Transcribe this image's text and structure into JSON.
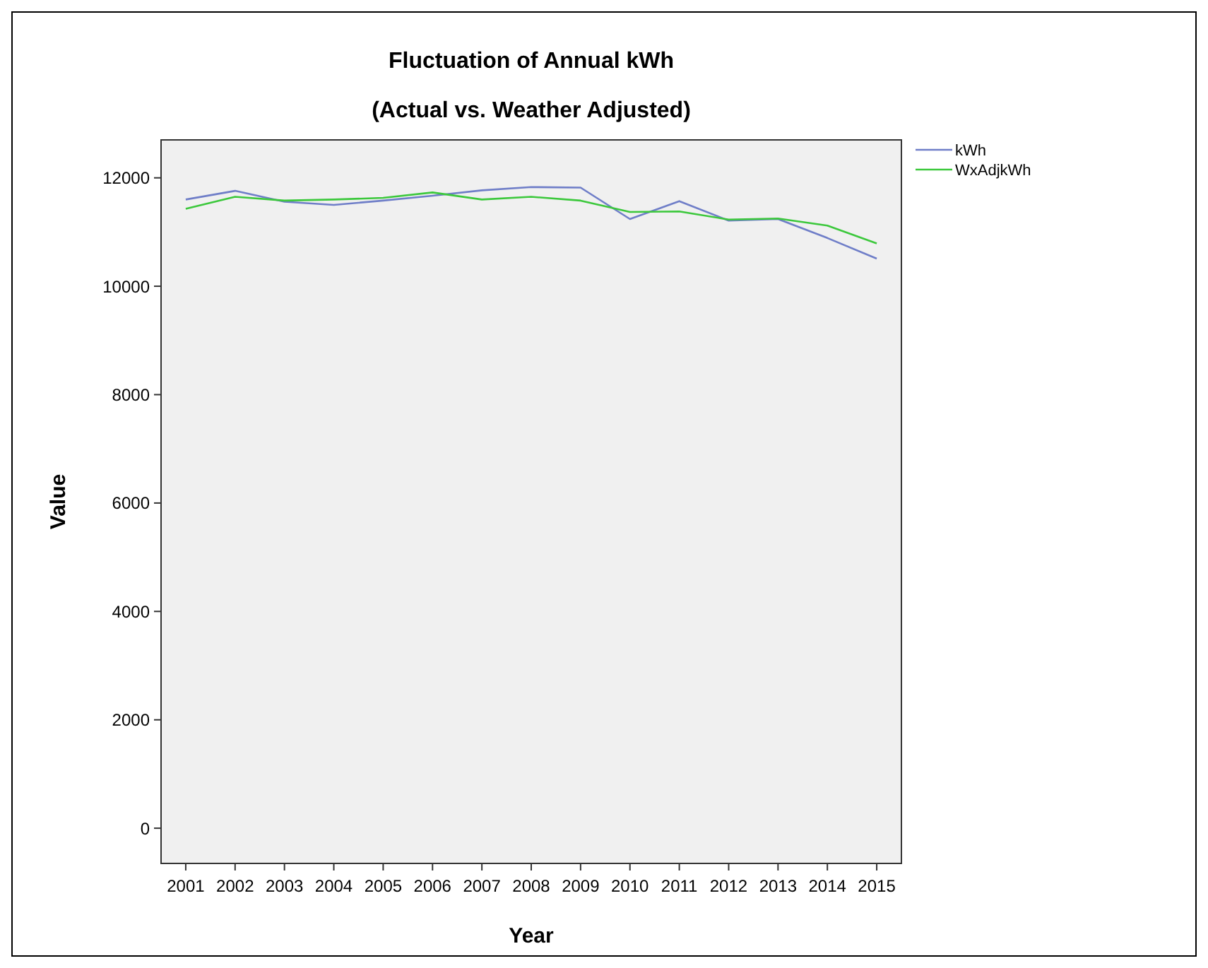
{
  "chart_data": {
    "type": "line",
    "title": "Fluctuation of Annual kWh",
    "subtitle": "(Actual vs. Weather Adjusted)",
    "xlabel": "Year",
    "ylabel": "Value",
    "categories": [
      "2001",
      "2002",
      "2003",
      "2004",
      "2005",
      "2006",
      "2007",
      "2008",
      "2009",
      "2010",
      "2011",
      "2012",
      "2013",
      "2014",
      "2015"
    ],
    "series": [
      {
        "name": "kWh",
        "color": "#6f7ec8",
        "values": [
          11600,
          11760,
          11560,
          11500,
          11580,
          11670,
          11770,
          11830,
          11820,
          11240,
          11570,
          11210,
          11240,
          10890,
          10510
        ]
      },
      {
        "name": "WxAdjkWh",
        "color": "#3cc83c",
        "values": [
          11430,
          11650,
          11580,
          11600,
          11630,
          11730,
          11600,
          11650,
          11580,
          11370,
          11380,
          11230,
          11250,
          11120,
          10790
        ]
      }
    ],
    "ylim": [
      -650,
      12700
    ],
    "yticks": [
      0,
      2000,
      4000,
      6000,
      8000,
      10000,
      12000
    ],
    "legend": "top right",
    "grid": false,
    "marker": "none",
    "line_style": "solid"
  }
}
